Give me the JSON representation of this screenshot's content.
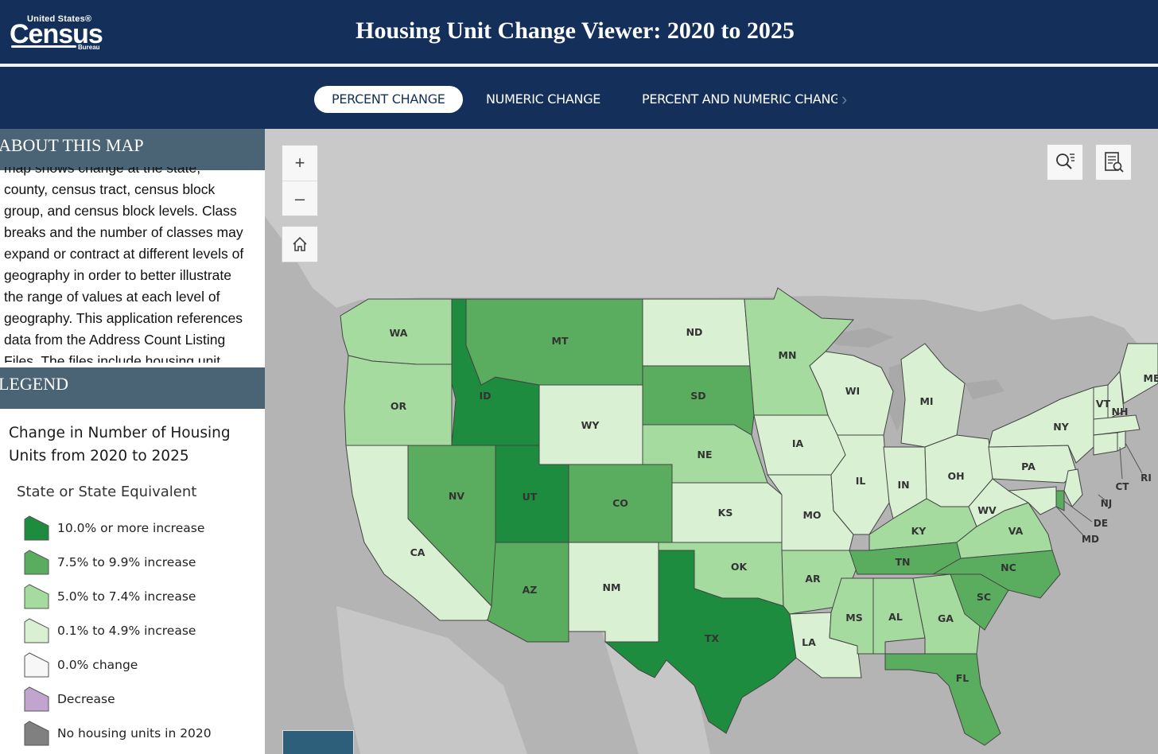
{
  "header": {
    "logo": {
      "small": "United States®",
      "big": "Census",
      "bureau": "Bureau"
    },
    "title": "Housing Unit Change Viewer: 2020 to 2025"
  },
  "tabs": [
    {
      "label": "PERCENT CHANGE"
    },
    {
      "label": "NUMERIC CHANGE"
    },
    {
      "label": "PERCENT AND NUMERIC CHANGE"
    }
  ],
  "about": {
    "heading": "ABOUT THIS MAP",
    "lines": [
      "map shows change at the state,",
      "county, census tract, census block",
      "group, and census block levels. Class",
      "breaks and the number of classes may",
      "expand or contract at different levels of",
      "geography in order to better illustrate",
      "the range of values at each level of",
      "geography. This application references",
      "data from the Address Count Listing",
      "Files. The files include housing unit"
    ]
  },
  "legend": {
    "heading": "LEGEND",
    "title_line1": "Change in Number of Housing",
    "title_line2": "Units from 2020 to 2025",
    "subtitle": "State or State Equivalent",
    "items": [
      {
        "label": "10.0% or more increase",
        "color": "#1e8c3e"
      },
      {
        "label": "7.5% to 9.9% increase",
        "color": "#5aad5e"
      },
      {
        "label": "5.0% to 7.4% increase",
        "color": "#a6dba0"
      },
      {
        "label": "0.1% to 4.9% increase",
        "color": "#d9f0d3"
      },
      {
        "label": "0.0% change",
        "color": "#f7f7f7"
      },
      {
        "label": "Decrease",
        "color": "#c2a5cf"
      },
      {
        "label": "No housing units in 2020",
        "color": "#808080"
      }
    ]
  },
  "map_controls": {
    "zoom_in": "+",
    "zoom_out": "–"
  },
  "map_labels": {
    "WA": "WA",
    "OR": "OR",
    "CA": "CA",
    "ID": "ID",
    "NV": "NV",
    "MT": "MT",
    "WY": "WY",
    "UT": "UT",
    "AZ": "AZ",
    "CO": "CO",
    "NM": "NM",
    "ND": "ND",
    "SD": "SD",
    "NE": "NE",
    "KS": "KS",
    "OK": "OK",
    "TX": "TX",
    "MN": "MN",
    "IA": "IA",
    "MO": "MO",
    "AR": "AR",
    "LA": "LA",
    "WI": "WI",
    "IL": "IL",
    "MI": "MI",
    "IN": "IN",
    "OH": "OH",
    "KY": "KY",
    "TN": "TN",
    "MS": "MS",
    "AL": "AL",
    "GA": "GA",
    "FL": "FL",
    "SC": "SC",
    "NC": "NC",
    "VA": "VA",
    "WV": "WV",
    "PA": "PA",
    "NY": "NY",
    "VT": "VT",
    "NH": "NH",
    "ME": "ME",
    "CT": "CT",
    "RI": "RI",
    "NJ": "NJ",
    "DE": "DE",
    "MD": "MD"
  }
}
